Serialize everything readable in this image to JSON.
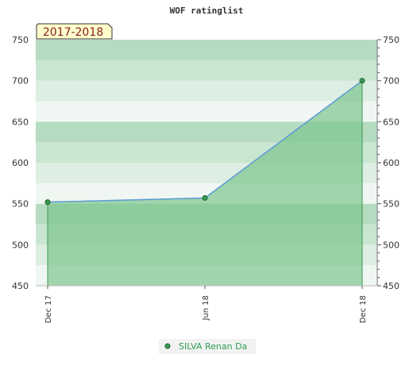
{
  "chart_data": {
    "type": "area",
    "title": "WOF ratinglist",
    "subtitle": "2017-2018",
    "x": [
      "Dec 17",
      "Jun 18",
      "Dec 18"
    ],
    "series": [
      {
        "name": "SILVA Renan Da",
        "values": [
          552,
          557,
          700
        ]
      }
    ],
    "ylim": [
      450,
      750
    ],
    "yticks": [
      450,
      500,
      550,
      600,
      650,
      700,
      750
    ],
    "grid": true,
    "legend": "bottom",
    "colors": {
      "fill": "#7cc58f",
      "line": "#5b9bd5",
      "marker": "#3a9a55",
      "badge_bg": "#ffffcc",
      "badge_text": "#8b1a1a",
      "legend_text": "#2e9e4e"
    }
  }
}
